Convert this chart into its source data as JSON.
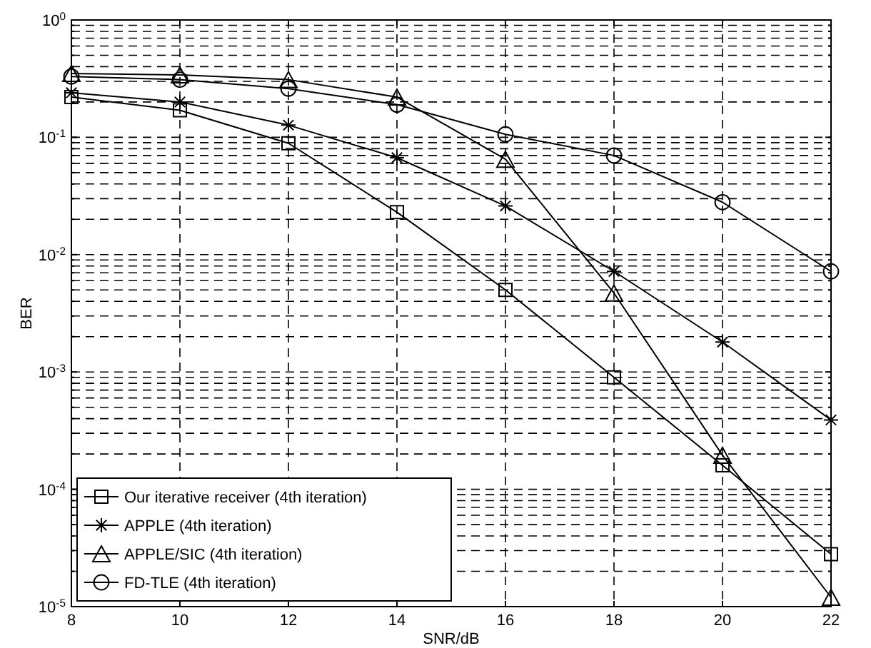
{
  "chart_data": {
    "type": "line",
    "xlabel": "SNR/dB",
    "ylabel": "BER",
    "log": "y",
    "grid": true,
    "legend": "bottom left",
    "x": [
      8,
      10,
      12,
      14,
      16,
      18,
      20,
      22
    ],
    "xlim": [
      8,
      22
    ],
    "xticks": [
      8,
      10,
      12,
      14,
      16,
      18,
      20,
      22
    ],
    "ylim": [
      1e-05,
      1
    ],
    "yticks": [
      {
        "value": 1e-05,
        "label": "10$^{-5}$"
      },
      {
        "value": 2e-05,
        "label": null
      },
      {
        "value": 3e-05,
        "label": null
      },
      {
        "value": 4e-05,
        "label": null
      },
      {
        "value": 5e-05,
        "label": null
      },
      {
        "value": 6e-05,
        "label": null
      },
      {
        "value": 7e-05,
        "label": null
      },
      {
        "value": 8e-05,
        "label": null
      },
      {
        "value": 9e-05,
        "label": null
      },
      {
        "value": 0.0001,
        "label": "10$^{-4}$"
      },
      {
        "value": 0.0002,
        "label": null
      },
      {
        "value": 0.0003,
        "label": null
      },
      {
        "value": 0.0004,
        "label": null
      },
      {
        "value": 0.0005,
        "label": null
      },
      {
        "value": 0.0006,
        "label": null
      },
      {
        "value": 0.0007,
        "label": null
      },
      {
        "value": 0.0008,
        "label": null
      },
      {
        "value": 0.0009,
        "label": null
      },
      {
        "value": 0.001,
        "label": "10$^{-3}$"
      },
      {
        "value": 0.002,
        "label": null
      },
      {
        "value": 0.003,
        "label": null
      },
      {
        "value": 0.004,
        "label": null
      },
      {
        "value": 0.005,
        "label": null
      },
      {
        "value": 0.006,
        "label": null
      },
      {
        "value": 0.007,
        "label": null
      },
      {
        "value": 0.008,
        "label": null
      },
      {
        "value": 0.009,
        "label": null
      },
      {
        "value": 0.01,
        "label": "10$^{-2}$"
      },
      {
        "value": 0.02,
        "label": null
      },
      {
        "value": 0.03,
        "label": null
      },
      {
        "value": 0.04,
        "label": null
      },
      {
        "value": 0.05,
        "label": null
      },
      {
        "value": 0.06,
        "label": null
      },
      {
        "value": 0.07,
        "label": null
      },
      {
        "value": 0.08,
        "label": null
      },
      {
        "value": 0.09,
        "label": null
      },
      {
        "value": 0.1,
        "label": "10$^{-1}$"
      },
      {
        "value": 0.2,
        "label": null
      },
      {
        "value": 0.3,
        "label": null
      },
      {
        "value": 0.4,
        "label": null
      },
      {
        "value": 0.5,
        "label": null
      },
      {
        "value": 0.6,
        "label": null
      },
      {
        "value": 0.7,
        "label": null
      },
      {
        "value": 0.8,
        "label": null
      },
      {
        "value": 0.9,
        "label": null
      },
      {
        "value": 1,
        "label": "10$^{0}$"
      }
    ],
    "series": [
      {
        "name": "Our iterative receiver (4th iteration)",
        "color": "#000000",
        "marker": "square",
        "line_style": "solid",
        "values": [
          0.22,
          0.17,
          0.089,
          0.023,
          0.005,
          0.0009,
          0.00016,
          2.8e-05
        ]
      },
      {
        "name": "APPLE (4th iteration)",
        "color": "#000000",
        "marker": "cross",
        "line_style": "solid",
        "values": [
          0.24,
          0.2,
          0.127,
          0.067,
          0.026,
          0.0072,
          0.0018,
          0.00039
        ]
      },
      {
        "name": "APPLE/SIC (4th iteration)",
        "color": "#000000",
        "marker": "triangle",
        "line_style": "solid",
        "values": [
          0.35,
          0.34,
          0.31,
          0.22,
          0.065,
          0.0047,
          0.000195,
          1.2e-05
        ]
      },
      {
        "name": "FD-TLE (4th iteration)",
        "color": "#000000",
        "marker": "circle",
        "line_style": "solid",
        "values": [
          0.33,
          0.31,
          0.26,
          0.19,
          0.106,
          0.07,
          0.028,
          0.0072
        ]
      }
    ]
  }
}
